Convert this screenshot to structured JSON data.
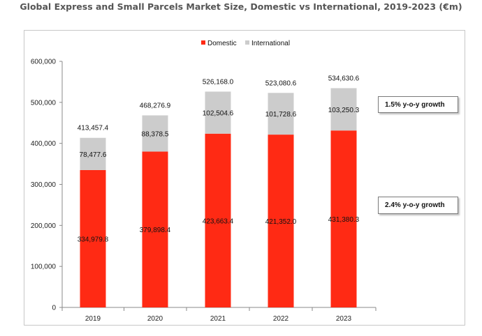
{
  "title": "Global Express and Small Parcels Market Size, Domestic vs International, 2019-2023 (€m)",
  "legend": {
    "position": "top-center"
  },
  "colors": {
    "domestic": "#ff2a14",
    "international": "#cccccc",
    "grid": "none"
  },
  "callouts": {
    "international_growth": "1.5% y-o-y growth",
    "domestic_growth": "2.4% y-o-y growth"
  },
  "chart_data": {
    "type": "bar",
    "stacked": true,
    "categories": [
      "2019",
      "2020",
      "2021",
      "2022",
      "2023"
    ],
    "series": [
      {
        "name": "Domestic",
        "values": [
          334979.8,
          379898.4,
          423663.4,
          421352.0,
          431380.3
        ],
        "labels": [
          "334,979.8",
          "379,898.4",
          "423,663.4",
          "421,352.0",
          "431,380.3"
        ]
      },
      {
        "name": "International",
        "values": [
          78477.6,
          88378.5,
          102504.6,
          101728.6,
          103250.3
        ],
        "labels": [
          "78,477.6",
          "88,378.5",
          "102,504.6",
          "101,728.6",
          "103,250.3"
        ]
      }
    ],
    "totals": [
      413457.4,
      468276.9,
      526168.0,
      523080.6,
      534630.6
    ],
    "total_labels": [
      "413,457.4",
      "468,276.9",
      "526,168.0",
      "523,080.6",
      "534,630.6"
    ],
    "ylim": [
      0,
      600000
    ],
    "yticks": [
      0,
      100000,
      200000,
      300000,
      400000,
      500000,
      600000
    ],
    "ytick_labels": [
      "0",
      "100,000",
      "200,000",
      "300,000",
      "400,000",
      "500,000",
      "600,000"
    ],
    "xlabel": "",
    "ylabel": "",
    "grid": false,
    "legend": "top-center"
  }
}
